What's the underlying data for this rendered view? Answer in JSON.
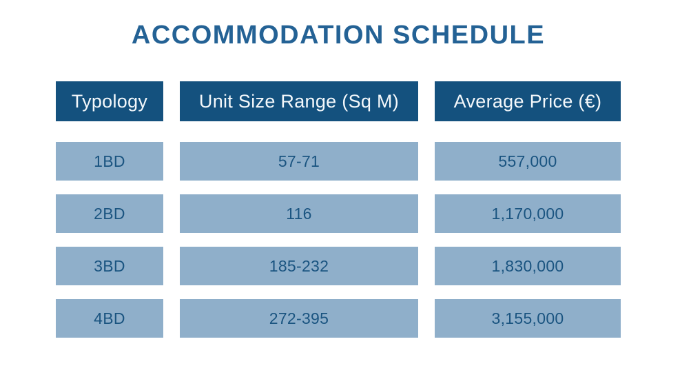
{
  "title": "ACCOMMODATION SCHEDULE",
  "colors": {
    "page_background": "#FFFFFF",
    "title_text": "#246295",
    "header_background": "#14517E",
    "header_text": "#F4F8FB",
    "cell_background": "#8FAFCA",
    "cell_text": "#1A5480"
  },
  "table": {
    "headers": [
      {
        "label": "Typology"
      },
      {
        "label": "Unit Size Range (Sq M)"
      },
      {
        "label": "Average Price (€)"
      }
    ],
    "rows": [
      {
        "cells": [
          "1BD",
          "57-71",
          "557,000"
        ]
      },
      {
        "cells": [
          "2BD",
          "116",
          "1,170,000"
        ]
      },
      {
        "cells": [
          "3BD",
          "185-232",
          "1,830,000"
        ]
      },
      {
        "cells": [
          "4BD",
          "272-395",
          "3,155,000"
        ]
      }
    ]
  },
  "chart_data": {
    "type": "table",
    "title": "ACCOMMODATION SCHEDULE",
    "columns": [
      "Typology",
      "Unit Size Range (Sq M)",
      "Average Price (€)"
    ],
    "rows": [
      [
        "1BD",
        "57-71",
        557000
      ],
      [
        "2BD",
        "116",
        1170000
      ],
      [
        "3BD",
        "185-232",
        1830000
      ],
      [
        "4BD",
        "272-395",
        3155000
      ]
    ],
    "notes": "Static presentation table; sizes in square metres, prices in euros"
  }
}
